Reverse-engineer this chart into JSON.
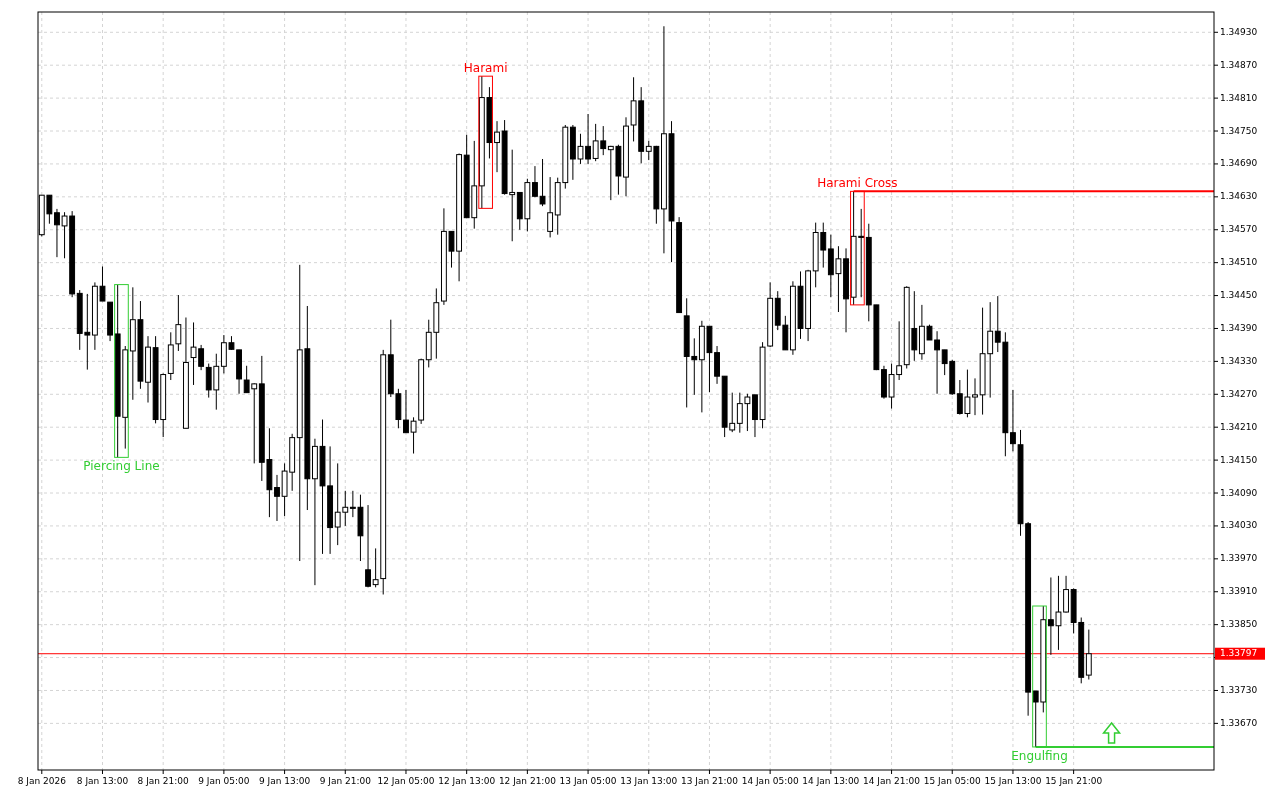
{
  "chart_data": {
    "type": "candlestick",
    "categories": [
      "8 Jan 2026",
      null,
      null,
      null,
      null,
      null,
      null,
      null,
      "8 Jan 13:00",
      null,
      null,
      null,
      null,
      null,
      null,
      null,
      "8 Jan 21:00",
      null,
      null,
      null,
      null,
      null,
      null,
      null,
      "9 Jan 05:00",
      null,
      null,
      null,
      null,
      null,
      null,
      null,
      "9 Jan 13:00",
      null,
      null,
      null,
      null,
      null,
      null,
      null,
      "9 Jan 21:00",
      null,
      null,
      null,
      null,
      null,
      null,
      null,
      "12 Jan 05:00",
      null,
      null,
      null,
      null,
      null,
      null,
      null,
      "12 Jan 13:00",
      null,
      null,
      null,
      null,
      null,
      null,
      null,
      "12 Jan 21:00",
      null,
      null,
      null,
      null,
      null,
      null,
      null,
      "13 Jan 05:00",
      null,
      null,
      null,
      null,
      null,
      null,
      null,
      "13 Jan 13:00",
      null,
      null,
      null,
      null,
      null,
      null,
      null,
      "13 Jan 21:00",
      null,
      null,
      null,
      null,
      null,
      null,
      null,
      "14 Jan 05:00",
      null,
      null,
      null,
      null,
      null,
      null,
      null,
      "14 Jan 13:00",
      null,
      null,
      null,
      null,
      null,
      null,
      null,
      "14 Jan 21:00",
      null,
      null,
      null,
      null,
      null,
      null,
      null,
      "15 Jan 05:00",
      null,
      null,
      null,
      null,
      null,
      null,
      null,
      "15 Jan 13:00",
      null,
      null,
      null,
      null,
      null,
      null,
      null,
      "15 Jan 21:00",
      null,
      null,
      null,
      null,
      null,
      null,
      null,
      null,
      null,
      null,
      null,
      null,
      null,
      null,
      null,
      null,
      null,
      null
    ],
    "ohlc": [
      [
        1.34561,
        1.34633,
        1.34558,
        1.34633
      ],
      [
        1.34633,
        1.34633,
        1.34581,
        1.34599
      ],
      [
        1.34601,
        1.34608,
        1.3452,
        1.34579
      ],
      [
        1.34577,
        1.34602,
        1.34518,
        1.34595
      ],
      [
        1.34595,
        1.34604,
        1.34447,
        1.34453
      ],
      [
        1.34454,
        1.3446,
        1.34351,
        1.34381
      ],
      [
        1.34383,
        1.34453,
        1.34315,
        1.34378
      ],
      [
        1.34378,
        1.34474,
        1.34351,
        1.34467
      ],
      [
        1.34467,
        1.34503,
        1.3444,
        1.3444
      ],
      [
        1.34438,
        1.34438,
        1.34367,
        1.34378
      ],
      [
        1.3438,
        1.3447,
        1.34155,
        1.3423
      ],
      [
        1.34228,
        1.34358,
        1.34171,
        1.34351
      ],
      [
        1.34349,
        1.34465,
        1.3426,
        1.34406
      ],
      [
        1.34406,
        1.3444,
        1.3428,
        1.34294
      ],
      [
        1.34292,
        1.34376,
        1.34255,
        1.34356
      ],
      [
        1.34355,
        1.34376,
        1.34217,
        1.34224
      ],
      [
        1.34224,
        1.34308,
        1.34192,
        1.34306
      ],
      [
        1.34308,
        1.34383,
        1.34296,
        1.3436
      ],
      [
        1.34362,
        1.34451,
        1.34349,
        1.34397
      ],
      [
        1.34208,
        1.3441,
        1.34208,
        1.34328
      ],
      [
        1.34337,
        1.34401,
        1.34287,
        1.34356
      ],
      [
        1.34353,
        1.3436,
        1.34314,
        1.34321
      ],
      [
        1.34319,
        1.34326,
        1.34264,
        1.34278
      ],
      [
        1.34278,
        1.34344,
        1.34242,
        1.34321
      ],
      [
        1.34321,
        1.34378,
        1.34308,
        1.34364
      ],
      [
        1.34364,
        1.34376,
        1.34351,
        1.34352
      ],
      [
        1.34351,
        1.34351,
        1.34271,
        1.34298
      ],
      [
        1.34296,
        1.34322,
        1.34273,
        1.34273
      ],
      [
        1.3428,
        1.3429,
        1.34144,
        1.34289
      ],
      [
        1.34289,
        1.3434,
        1.34112,
        1.34146
      ],
      [
        1.34151,
        1.34208,
        1.34046,
        1.34096
      ],
      [
        1.341,
        1.34123,
        1.34039,
        1.34084
      ],
      [
        1.34084,
        1.34144,
        1.34048,
        1.3413
      ],
      [
        1.34128,
        1.34198,
        1.34094,
        1.34191
      ],
      [
        1.34191,
        1.34506,
        1.33966,
        1.34351
      ],
      [
        1.34353,
        1.34431,
        1.34059,
        1.34116
      ],
      [
        1.34116,
        1.34189,
        1.33922,
        1.34175
      ],
      [
        1.34175,
        1.34224,
        1.33979,
        1.34103
      ],
      [
        1.34103,
        1.34175,
        1.33979,
        1.34027
      ],
      [
        1.34028,
        1.34144,
        1.33995,
        1.34055
      ],
      [
        1.34055,
        1.34094,
        1.3403,
        1.34064
      ],
      [
        1.34064,
        1.34094,
        1.34046,
        1.34062
      ],
      [
        1.34064,
        1.34087,
        1.33966,
        1.34012
      ],
      [
        1.3395,
        1.34068,
        1.33918,
        1.3392
      ],
      [
        1.33923,
        1.33989,
        1.33918,
        1.33932
      ],
      [
        1.33934,
        1.34351,
        1.33905,
        1.34342
      ],
      [
        1.34342,
        1.34406,
        1.34265,
        1.34271
      ],
      [
        1.34271,
        1.3428,
        1.34208,
        1.34224
      ],
      [
        1.34223,
        1.34278,
        1.342,
        1.342
      ],
      [
        1.34201,
        1.34228,
        1.34162,
        1.34221
      ],
      [
        1.34223,
        1.34335,
        1.34216,
        1.34333
      ],
      [
        1.34333,
        1.34406,
        1.34319,
        1.34383
      ],
      [
        1.34383,
        1.34463,
        1.34335,
        1.34437
      ],
      [
        1.3444,
        1.34609,
        1.34433,
        1.34567
      ],
      [
        1.34567,
        1.34567,
        1.34501,
        1.34531
      ],
      [
        1.34531,
        1.34709,
        1.34476,
        1.34707
      ],
      [
        1.34706,
        1.34743,
        1.34592,
        1.34592
      ],
      [
        1.34592,
        1.34732,
        1.34572,
        1.3465
      ],
      [
        1.3465,
        1.3485,
        1.34609,
        1.34811
      ],
      [
        1.34811,
        1.3483,
        1.347,
        1.34729
      ],
      [
        1.34729,
        1.34768,
        1.34675,
        1.34748
      ],
      [
        1.3475,
        1.3477,
        1.34634,
        1.34636
      ],
      [
        1.34634,
        1.34716,
        1.34549,
        1.34638
      ],
      [
        1.34638,
        1.34638,
        1.3457,
        1.3459
      ],
      [
        1.3459,
        1.34663,
        1.34567,
        1.34656
      ],
      [
        1.34656,
        1.34686,
        1.34629,
        1.34631
      ],
      [
        1.34631,
        1.34699,
        1.34613,
        1.34617
      ],
      [
        1.34567,
        1.34666,
        1.34556,
        1.34601
      ],
      [
        1.34597,
        1.34665,
        1.34561,
        1.34656
      ],
      [
        1.34656,
        1.34761,
        1.34645,
        1.34757
      ],
      [
        1.34757,
        1.34761,
        1.34661,
        1.34699
      ],
      [
        1.34699,
        1.34745,
        1.3469,
        1.34722
      ],
      [
        1.34722,
        1.34781,
        1.3469,
        1.34699
      ],
      [
        1.347,
        1.34763,
        1.34695,
        1.34732
      ],
      [
        1.34732,
        1.34759,
        1.34706,
        1.34718
      ],
      [
        1.34716,
        1.34723,
        1.34624,
        1.34722
      ],
      [
        1.34722,
        1.34725,
        1.34634,
        1.34668
      ],
      [
        1.34666,
        1.34775,
        1.34631,
        1.34759
      ],
      [
        1.34761,
        1.34848,
        1.34731,
        1.34805
      ],
      [
        1.34805,
        1.3483,
        1.34691,
        1.34713
      ],
      [
        1.34713,
        1.34732,
        1.34697,
        1.34722
      ],
      [
        1.34722,
        1.34723,
        1.34581,
        1.34608
      ],
      [
        1.34608,
        1.34941,
        1.34527,
        1.34745
      ],
      [
        1.34745,
        1.34768,
        1.34511,
        1.34586
      ],
      [
        1.34583,
        1.34593,
        1.34419,
        1.34419
      ],
      [
        1.34413,
        1.34445,
        1.34246,
        1.34339
      ],
      [
        1.34339,
        1.34372,
        1.34269,
        1.34333
      ],
      [
        1.34333,
        1.34404,
        1.34237,
        1.34394
      ],
      [
        1.34394,
        1.34394,
        1.34274,
        1.34346
      ],
      [
        1.34346,
        1.34358,
        1.34289,
        1.34303
      ],
      [
        1.34303,
        1.34303,
        1.34192,
        1.3421
      ],
      [
        1.34205,
        1.34273,
        1.34201,
        1.34217
      ],
      [
        1.34217,
        1.34273,
        1.342,
        1.34253
      ],
      [
        1.34253,
        1.34271,
        1.34203,
        1.34265
      ],
      [
        1.34269,
        1.34269,
        1.34192,
        1.34224
      ],
      [
        1.34224,
        1.34365,
        1.34208,
        1.34356
      ],
      [
        1.34358,
        1.34474,
        1.34356,
        1.34445
      ],
      [
        1.34445,
        1.34458,
        1.34387,
        1.34396
      ],
      [
        1.34396,
        1.34413,
        1.34351,
        1.34351
      ],
      [
        1.34351,
        1.34476,
        1.34342,
        1.34467
      ],
      [
        1.34467,
        1.34494,
        1.34371,
        1.3439
      ],
      [
        1.3439,
        1.34497,
        1.34367,
        1.34495
      ],
      [
        1.34495,
        1.34583,
        1.34465,
        1.34565
      ],
      [
        1.34565,
        1.34583,
        1.34501,
        1.34533
      ],
      [
        1.34535,
        1.34561,
        1.34447,
        1.34488
      ],
      [
        1.3449,
        1.3454,
        1.3442,
        1.34517
      ],
      [
        1.34517,
        1.34536,
        1.34383,
        1.34444
      ],
      [
        1.34447,
        1.3464,
        1.34433,
        1.34558
      ],
      [
        1.34558,
        1.34608,
        1.34447,
        1.34556
      ],
      [
        1.34556,
        1.34581,
        1.34403,
        1.34433
      ],
      [
        1.34433,
        1.34433,
        1.34314,
        1.34315
      ],
      [
        1.34315,
        1.34322,
        1.34262,
        1.34265
      ],
      [
        1.34265,
        1.34326,
        1.34244,
        1.34306
      ],
      [
        1.34306,
        1.34403,
        1.34296,
        1.34322
      ],
      [
        1.34324,
        1.34467,
        1.34317,
        1.34465
      ],
      [
        1.3439,
        1.34458,
        1.34331,
        1.34351
      ],
      [
        1.34344,
        1.34433,
        1.34333,
        1.34394
      ],
      [
        1.34394,
        1.34397,
        1.34369,
        1.34369
      ],
      [
        1.34369,
        1.34385,
        1.34271,
        1.34351
      ],
      [
        1.34351,
        1.34351,
        1.34305,
        1.34326
      ],
      [
        1.3433,
        1.34333,
        1.34269,
        1.34271
      ],
      [
        1.34271,
        1.34296,
        1.34233,
        1.34235
      ],
      [
        1.34235,
        1.34315,
        1.34228,
        1.34265
      ],
      [
        1.34265,
        1.34299,
        1.34232,
        1.34269
      ],
      [
        1.34269,
        1.34428,
        1.34233,
        1.34344
      ],
      [
        1.34344,
        1.34438,
        1.34264,
        1.34385
      ],
      [
        1.34385,
        1.34449,
        1.34347,
        1.34365
      ],
      [
        1.34365,
        1.34383,
        1.34157,
        1.342
      ],
      [
        1.342,
        1.34278,
        1.34166,
        1.3418
      ],
      [
        1.34178,
        1.34205,
        1.34012,
        1.34034
      ],
      [
        1.34034,
        1.34037,
        1.33684,
        1.33727
      ],
      [
        1.33729,
        1.33729,
        1.33627,
        1.33709
      ],
      [
        1.33709,
        1.33884,
        1.3369,
        1.33859
      ],
      [
        1.33859,
        1.33936,
        1.33795,
        1.33848
      ],
      [
        1.33848,
        1.33939,
        1.33804,
        1.33873
      ],
      [
        1.33873,
        1.33939,
        1.33872,
        1.33914
      ],
      [
        1.33914,
        1.33916,
        1.33834,
        1.33854
      ],
      [
        1.33854,
        1.33863,
        1.33743,
        1.33754
      ],
      [
        1.33758,
        1.33841,
        1.3375,
        1.33797
      ],
      null,
      null,
      null,
      null,
      null,
      null,
      null,
      null,
      null,
      null,
      null,
      null,
      null,
      null,
      null,
      null
    ],
    "ylim": [
      1.33585,
      1.34967
    ],
    "yticks": [
      {
        "value": 1.3493,
        "label": "1.34930"
      },
      {
        "value": 1.3487,
        "label": "1.34870"
      },
      {
        "value": 1.3481,
        "label": "1.34810"
      },
      {
        "value": 1.3475,
        "label": "1.34750"
      },
      {
        "value": 1.3469,
        "label": "1.34690"
      },
      {
        "value": 1.3463,
        "label": "1.34630"
      },
      {
        "value": 1.3457,
        "label": "1.34570"
      },
      {
        "value": 1.3451,
        "label": "1.34510"
      },
      {
        "value": 1.3445,
        "label": "1.34450"
      },
      {
        "value": 1.3439,
        "label": "1.34390"
      },
      {
        "value": 1.3433,
        "label": "1.34330"
      },
      {
        "value": 1.3427,
        "label": "1.34270"
      },
      {
        "value": 1.3421,
        "label": "1.34210"
      },
      {
        "value": 1.3415,
        "label": "1.34150"
      },
      {
        "value": 1.3409,
        "label": "1.34090"
      },
      {
        "value": 1.3403,
        "label": "1.34030"
      },
      {
        "value": 1.3397,
        "label": "1.33970"
      },
      {
        "value": 1.3391,
        "label": "1.33910"
      },
      {
        "value": 1.3385,
        "label": "1.33850"
      },
      {
        "value": 1.3379,
        "label": null
      },
      {
        "value": 1.3373,
        "label": "1.33730"
      },
      {
        "value": 1.3367,
        "label": "1.33670"
      }
    ],
    "grid": true,
    "annotations": [
      {
        "text": "Piercing Line",
        "y": 1.34155
      },
      {
        "text": "Harami",
        "y": 1.3485
      },
      {
        "text": "Harami Cross",
        "y": 1.3464
      },
      {
        "text": "Engulfing",
        "y": 1.33627
      }
    ],
    "ref_lines": [
      {
        "axis": "y",
        "value": 1.33797,
        "label": "1.33797",
        "color": "#ff0000"
      },
      {
        "axis": "y",
        "value": 1.3464,
        "color": "#ff0000"
      },
      {
        "axis": "y",
        "value": 1.33627,
        "color": "#32cd32"
      }
    ]
  }
}
